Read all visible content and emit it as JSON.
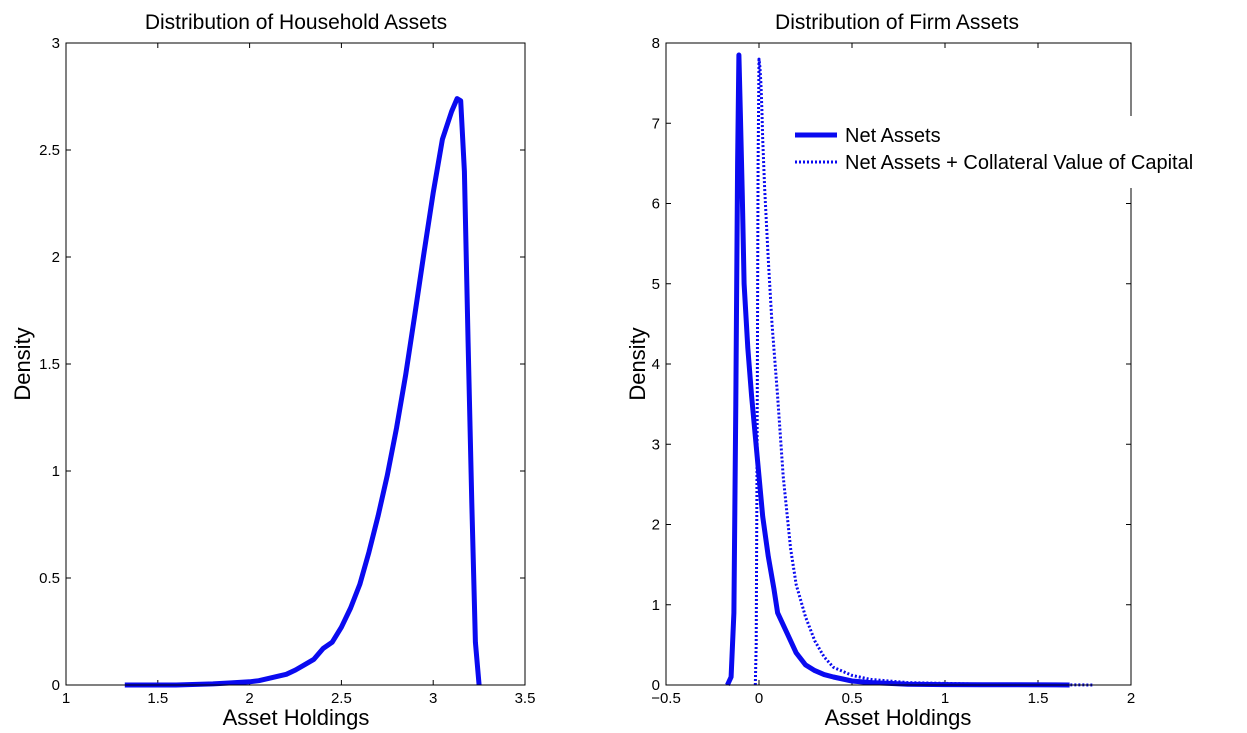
{
  "chart_data": [
    {
      "type": "line",
      "title": "Distribution of Household Assets",
      "xlabel": "Asset Holdings",
      "ylabel": "Density",
      "xlim": [
        1,
        3.5
      ],
      "ylim": [
        0,
        3
      ],
      "xticks": [
        "1",
        "1.5",
        "2",
        "2.5",
        "3",
        "3.5"
      ],
      "yticks": [
        "0",
        "0.5",
        "1",
        "1.5",
        "2",
        "2.5",
        "3"
      ],
      "grid": false,
      "series": [
        {
          "color": "#0a0af0",
          "style": "solid",
          "x": [
            1.32,
            1.6,
            1.8,
            1.9,
            2.0,
            2.05,
            2.1,
            2.15,
            2.2,
            2.25,
            2.3,
            2.35,
            2.4,
            2.45,
            2.5,
            2.55,
            2.6,
            2.65,
            2.7,
            2.75,
            2.8,
            2.85,
            2.9,
            2.95,
            3.0,
            3.05,
            3.1,
            3.13,
            3.15,
            3.17,
            3.19,
            3.21,
            3.23,
            3.25
          ],
          "y": [
            0.0,
            0.0,
            0.005,
            0.01,
            0.015,
            0.02,
            0.03,
            0.04,
            0.05,
            0.07,
            0.095,
            0.12,
            0.17,
            0.2,
            0.27,
            0.36,
            0.47,
            0.62,
            0.79,
            0.98,
            1.2,
            1.45,
            1.73,
            2.02,
            2.3,
            2.55,
            2.68,
            2.74,
            2.73,
            2.4,
            1.6,
            0.85,
            0.2,
            0.0
          ]
        }
      ]
    },
    {
      "type": "line",
      "title": "Distribution of Firm Assets",
      "xlabel": "Asset Holdings",
      "ylabel": "Density",
      "xlim": [
        -0.5,
        2
      ],
      "ylim": [
        0,
        8
      ],
      "xticks": [
        "−0.5",
        "0",
        "0.5",
        "1",
        "1.5",
        "2"
      ],
      "yticks": [
        "0",
        "1",
        "2",
        "3",
        "4",
        "5",
        "6",
        "7",
        "8"
      ],
      "grid": false,
      "legend": {
        "position": "top-right"
      },
      "series": [
        {
          "name": "Net Assets",
          "color": "#0a0af0",
          "style": "solid",
          "x": [
            -0.17,
            -0.15,
            -0.135,
            -0.125,
            -0.115,
            -0.108,
            -0.1,
            -0.09,
            -0.08,
            -0.06,
            -0.04,
            -0.02,
            0.0,
            0.02,
            0.05,
            0.08,
            0.1,
            0.15,
            0.2,
            0.25,
            0.3,
            0.35,
            0.4,
            0.5,
            0.6,
            0.7,
            0.8,
            1.0,
            1.2,
            1.4,
            1.6,
            1.67
          ],
          "y": [
            0.0,
            0.1,
            0.9,
            3.5,
            6.5,
            7.85,
            7.1,
            6.1,
            5.0,
            4.2,
            3.6,
            3.1,
            2.6,
            2.1,
            1.6,
            1.2,
            0.9,
            0.65,
            0.4,
            0.25,
            0.18,
            0.13,
            0.1,
            0.05,
            0.03,
            0.02,
            0.01,
            0.005,
            0.003,
            0.002,
            0.001,
            0.0
          ]
        },
        {
          "name": "Net Assets + Collateral Value of Capital",
          "color": "#0a0af0",
          "style": "dotted",
          "x": [
            -0.02,
            -0.015,
            -0.01,
            -0.005,
            0.0,
            0.005,
            0.01,
            0.015,
            0.02,
            0.03,
            0.05,
            0.07,
            0.1,
            0.13,
            0.17,
            0.2,
            0.25,
            0.3,
            0.35,
            0.4,
            0.5,
            0.6,
            0.7,
            0.8,
            1.0,
            1.2,
            1.5,
            1.8
          ],
          "y": [
            0.0,
            0.5,
            3.0,
            6.5,
            7.8,
            7.7,
            7.5,
            7.2,
            6.8,
            6.2,
            5.3,
            4.5,
            3.6,
            2.6,
            1.7,
            1.25,
            0.85,
            0.55,
            0.35,
            0.22,
            0.12,
            0.07,
            0.05,
            0.03,
            0.02,
            0.01,
            0.005,
            0.0
          ]
        }
      ]
    }
  ]
}
